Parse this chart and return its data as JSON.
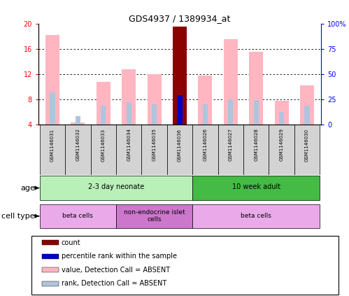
{
  "title": "GDS4937 / 1389934_at",
  "samples": [
    "GSM1146031",
    "GSM1146032",
    "GSM1146033",
    "GSM1146034",
    "GSM1146035",
    "GSM1146036",
    "GSM1146026",
    "GSM1146027",
    "GSM1146028",
    "GSM1146029",
    "GSM1146030"
  ],
  "value_bars": [
    18.2,
    4.3,
    10.8,
    12.8,
    12.0,
    19.5,
    11.8,
    17.5,
    15.5,
    7.8,
    10.2
  ],
  "rank_bars": [
    32.0,
    8.0,
    18.5,
    22.0,
    20.0,
    29.0,
    20.0,
    25.0,
    24.0,
    12.0,
    18.5
  ],
  "is_count": [
    false,
    false,
    false,
    false,
    false,
    true,
    false,
    false,
    false,
    false,
    false
  ],
  "is_present": [
    false,
    false,
    false,
    false,
    false,
    true,
    false,
    false,
    false,
    false,
    false
  ],
  "ylim": [
    4,
    20
  ],
  "y2lim": [
    0,
    100
  ],
  "yticks": [
    4,
    8,
    12,
    16,
    20
  ],
  "y2ticks": [
    0,
    25,
    50,
    75,
    100
  ],
  "value_color_absent": "#FFB6C1",
  "value_color_count": "#8B0000",
  "rank_color_absent": "#B0C4DE",
  "rank_color_present": "#0000CD",
  "age_groups": [
    {
      "label": "2-3 day neonate",
      "start": 0,
      "end": 6,
      "color": "#B8F0B8"
    },
    {
      "label": "10 week adult",
      "start": 6,
      "end": 11,
      "color": "#44BB44"
    }
  ],
  "cell_groups": [
    {
      "label": "beta cells",
      "start": 0,
      "end": 3,
      "color": "#EAAAEA"
    },
    {
      "label": "non-endocrine islet\ncells",
      "start": 3,
      "end": 6,
      "color": "#CC77CC"
    },
    {
      "label": "beta cells",
      "start": 6,
      "end": 11,
      "color": "#EAAAEA"
    }
  ],
  "legend_items": [
    {
      "color": "#8B0000",
      "label": "count"
    },
    {
      "color": "#0000CD",
      "label": "percentile rank within the sample"
    },
    {
      "color": "#FFB6C1",
      "label": "value, Detection Call = ABSENT"
    },
    {
      "color": "#B0C4DE",
      "label": "rank, Detection Call = ABSENT"
    }
  ]
}
